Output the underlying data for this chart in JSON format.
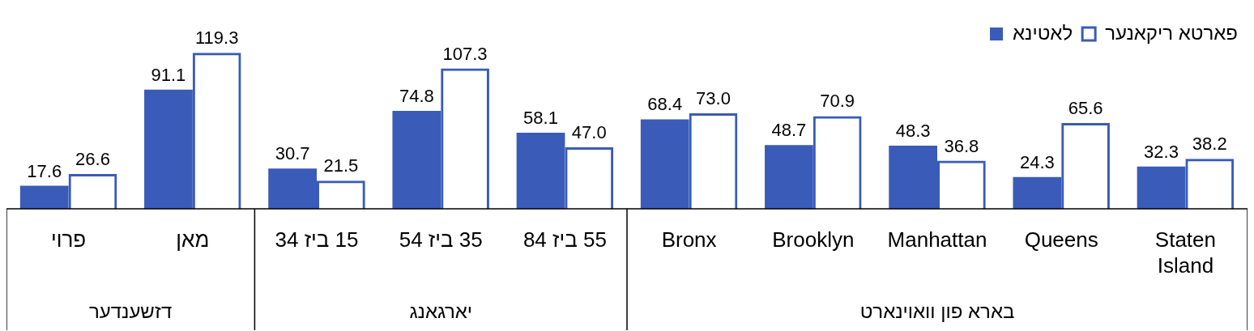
{
  "chart_data": {
    "type": "bar",
    "categories": [
      "פרוי",
      "מאן",
      "15 ביז 34",
      "35 ביז 54",
      "55 ביז 84",
      "Bronx",
      "Brooklyn",
      "Manhattan",
      "Queens",
      "Staten Island"
    ],
    "series": [
      {
        "name": "לאטינא",
        "color": "#3a5bb8",
        "values": [
          17.6,
          91.1,
          30.7,
          74.8,
          58.1,
          68.4,
          48.7,
          48.3,
          24.3,
          32.3
        ],
        "value_labels": [
          "17.6",
          "91.1",
          "30.7",
          "74.8",
          "58.1",
          "68.4",
          "48.7",
          "48.3",
          "24.3",
          "32.3"
        ]
      },
      {
        "name": "פארטא ריקאנער",
        "color": "#3a5bb8",
        "values": [
          26.6,
          119.3,
          21.5,
          107.3,
          47.0,
          73.0,
          70.9,
          36.8,
          65.6,
          38.2
        ],
        "value_labels": [
          "26.6",
          "119.3",
          "21.5",
          "107.3",
          "47.0",
          "73.0",
          "70.9",
          "36.8",
          "65.6",
          "38.2"
        ]
      }
    ],
    "annotations": [
      "דזשענדער",
      "יארגאנג",
      "בארא פון וואוינארט"
    ],
    "legend": "top right"
  }
}
